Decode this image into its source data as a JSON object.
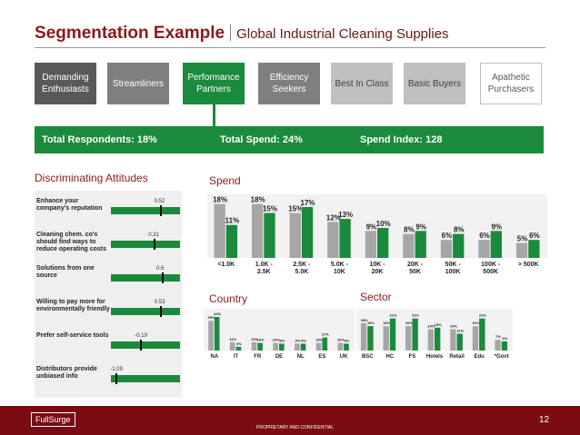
{
  "header": {
    "title": "Segmentation Example",
    "subtitle": "Global Industrial Cleaning Supplies"
  },
  "segments": [
    {
      "label": "Demanding Enthusiasts"
    },
    {
      "label": "Streamliners"
    },
    {
      "label": "Performance Partners"
    },
    {
      "label": "Efficiency Seekers"
    },
    {
      "label": "Best In Class"
    },
    {
      "label": "Basic Buyers"
    },
    {
      "label": "Apathetic Purchasers"
    }
  ],
  "stats": {
    "respondents": "Total Respondents:  18%",
    "spend": "Total Spend:  24%",
    "index": "Spend Index:  128"
  },
  "sections": {
    "attitudes": "Discriminating Attitudes",
    "spend": "Spend",
    "country": "Country",
    "sector": "Sector"
  },
  "attitudes": [
    {
      "label": "Enhance your company's reputation",
      "value": "0.52",
      "v": 0.52
    },
    {
      "label": "Cleaning chem. co's should find ways to reduce operating costs",
      "value": "0.31",
      "v": 0.31
    },
    {
      "label": "Solutions from one source",
      "value": "0.6",
      "v": 0.6
    },
    {
      "label": "Willing to pay more for environmentally friendly",
      "value": "0.53",
      "v": 0.53
    },
    {
      "label": "Prefer self-service tools",
      "value": "-0.19",
      "v": -0.19
    },
    {
      "label": "Distributors provide unbiased info",
      "value": "-1.09",
      "v": -1.09
    }
  ],
  "chart_data": [
    {
      "type": "bar",
      "categories": [
        "<1.0K",
        "1.0K - 2.5K",
        "2.5K - 5.0K",
        "5.0K - 10K",
        "10K - 20K",
        "20K - 50K",
        "50K - 100K",
        "100K - 500K",
        "> 500K"
      ],
      "series": [
        {
          "values": [
            18,
            18,
            15,
            12,
            9,
            8,
            6,
            6,
            5
          ],
          "labels": [
            "18%",
            "18%",
            "15%",
            "12%",
            "9%",
            "8%",
            "6%",
            "6%",
            "5%"
          ]
        },
        {
          "values": [
            11,
            15,
            17,
            13,
            10,
            9,
            8,
            9,
            6
          ],
          "labels": [
            "11%",
            "15%",
            "17%",
            "13%",
            "10%",
            "9%",
            "8%",
            "9%",
            "6%"
          ]
        }
      ],
      "ylim": [
        0,
        20
      ],
      "colors": [
        "#a6a6a6",
        "#1b8a3c"
      ]
    },
    {
      "type": "bar",
      "categories": [
        "NA",
        "IT",
        "FR",
        "DE",
        "NL",
        "ES",
        "UK"
      ],
      "series": [
        {
          "values": [
            39,
            11,
            11,
            10,
            9,
            10,
            10
          ],
          "labels": [
            "39%",
            "11%",
            "11%",
            "10%",
            "9%",
            "10%",
            "10%"
          ]
        },
        {
          "values": [
            44,
            5,
            10,
            9,
            9,
            17,
            9
          ],
          "labels": [
            "44%",
            "5%",
            "10%",
            "9%",
            "9%",
            "17%",
            "9%"
          ]
        }
      ],
      "ylim": [
        0,
        50
      ],
      "colors": [
        "#a6a6a6",
        "#1b8a3c"
      ]
    },
    {
      "type": "bar",
      "categories": [
        "BSC",
        "HC",
        "FS",
        "Hotels",
        "Retail",
        "Edu",
        "*Govt"
      ],
      "series": [
        {
          "values": [
            18,
            16,
            16,
            14,
            14,
            16,
            7
          ],
          "labels": [
            "18%",
            "16%",
            "16%",
            "14%",
            "14%",
            "16%",
            "7%"
          ]
        },
        {
          "values": [
            16,
            21,
            21,
            15,
            11,
            21,
            6
          ],
          "labels": [
            "16%",
            "21%",
            "21%",
            "15%",
            "11%",
            "21%",
            "6%"
          ]
        }
      ],
      "ylim": [
        0,
        25
      ],
      "colors": [
        "#a6a6a6",
        "#1b8a3c"
      ]
    }
  ],
  "footer": {
    "logo": "FullSurge",
    "confidential": "PROPRIETARY AND CONFIDENTIAL",
    "page": "12"
  }
}
